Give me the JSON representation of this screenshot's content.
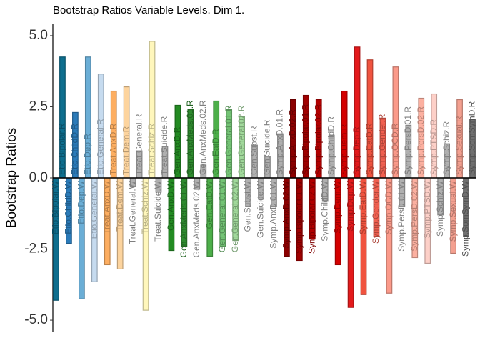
{
  "chart_data": {
    "type": "bar",
    "title": "Bootstrap Ratios Variable Levels. Dim 1.",
    "y_label": "Bootstrap Ratios",
    "categories": [
      "Etio.Bipolar.W",
      "Etio.Bipolar.R",
      "Etio.ChildD.W",
      "Etio.ChildD.R",
      "Etio.Dep.W",
      "Etio.Dep.R",
      "Etio.General.W",
      "Etio.General.R",
      "Treat.AnxD.W",
      "Treat.AnxD.R",
      "Treat.Dem.W",
      "Treat.Dem.R",
      "Treat.General.W",
      "Treat.General.R",
      "Treat.Schiz.W",
      "Treat.Schiz.R",
      "Treat.Suicide.W",
      "Treat.Suicide.R",
      "Gen.AnxD.W",
      "Gen.AnxD.R",
      "Gen.AnxMeds.01.W",
      "Gen.AnxMeds.01.R",
      "Gen.AnxMeds.02.W",
      "Gen.AnxMeds.02.R",
      "Gen.EatD.W",
      "Gen.EatD.R",
      "Gen.General.01.W",
      "Gen.General.01.R",
      "Gen.General.02.W",
      "Gen.General.02.R",
      "Gen.Subst.W",
      "Gen.Subst.R",
      "Gen.Suicide.W",
      "Gen.Suicide.R",
      "Symp.AnxD.01.W",
      "Symp.AnxD.01.R",
      "Symp.AnxD.02.W",
      "Symp.AnxD.02.R",
      "Symp.Bipolar.01.W",
      "Symp.Bipolar.01.R",
      "Symp.Bipolar.02.W",
      "Symp.Bipolar.02.R",
      "Symp.ChildD.W",
      "Symp.ChildD.R",
      "Symp.Dem.W",
      "Symp.Dem.R",
      "Symp.Dep.W",
      "Symp.Dep.R",
      "Symp.EatD.W",
      "Symp.EatD.R",
      "Symp.Gender.W",
      "Symp.Gender.R",
      "Symp.OCD.W",
      "Symp.OCD.R",
      "Symp.PersD.01.W",
      "Symp.PersD.01.R",
      "Symp.PersD.02.W",
      "Symp.PersD.02.R",
      "Symp.PTSD.W",
      "Symp.PTSD.R",
      "Symp.Schiz.W",
      "Symp.Schiz.R",
      "Symp.Sexual.W",
      "Symp.Sexual.R",
      "Symp.SomSymD.W",
      "Symp.SomSymD.R"
    ],
    "values": [
      -4.3,
      4.25,
      -2.3,
      2.3,
      -4.25,
      4.25,
      -3.65,
      3.65,
      -3.05,
      3.05,
      -3.2,
      3.2,
      -0.3,
      0.95,
      -4.65,
      4.8,
      -0.5,
      1.1,
      -2.55,
      2.55,
      -2.4,
      2.4,
      -0.4,
      0.45,
      -2.75,
      2.7,
      -2.4,
      2.4,
      -2.2,
      2.15,
      -1.0,
      1.15,
      -0.75,
      0.75,
      -1.0,
      1.55,
      -2.75,
      2.75,
      -2.9,
      2.9,
      -2.15,
      2.75,
      -0.8,
      1.5,
      -3.05,
      3.05,
      -4.55,
      4.6,
      -4.1,
      4.15,
      -2.05,
      2.1,
      -4.05,
      3.9,
      -1.0,
      1.85,
      -2.8,
      2.8,
      -3.0,
      2.95,
      -1.3,
      1.2,
      -2.65,
      2.75,
      -2.05,
      2.05
    ],
    "colors": [
      "#0e6e8e",
      "#0e6e8e",
      "#2b7bb9",
      "#2b7bb9",
      "#6baed6",
      "#6baed6",
      "#c6dbef",
      "#c6dbef",
      "#fdae61",
      "#fdae61",
      "#fdd49e",
      "#fdd49e",
      "#b0b0b0",
      "#b0b0b0",
      "#fff7bc",
      "#fff7bc",
      "#b0b0b0",
      "#b0b0b0",
      "#238b22",
      "#238b22",
      "#2e8b2e",
      "#2e8b2e",
      "#b0b0b0",
      "#b0b0b0",
      "#4daf4a",
      "#4daf4a",
      "#74c476",
      "#74c476",
      "#a1d99b",
      "#a1d99b",
      "#b0b0b0",
      "#b0b0b0",
      "#b0b0b0",
      "#b0b0b0",
      "#b0b0b0",
      "#b0b0b0",
      "#8b0000",
      "#8b0000",
      "#a00000",
      "#a00000",
      "#b20000",
      "#b20000",
      "#b0b0b0",
      "#b0b0b0",
      "#d40000",
      "#d40000",
      "#e31a1c",
      "#e31a1c",
      "#f0533f",
      "#f0533f",
      "#f06050",
      "#f06050",
      "#fb9a8a",
      "#fb9a8a",
      "#b0b0b0",
      "#b0b0b0",
      "#fcb0a0",
      "#fcb0a0",
      "#fdd0c8",
      "#fdd0c8",
      "#b0b0b0",
      "#b0b0b0",
      "#f4a090",
      "#f4a090",
      "#707070",
      "#707070"
    ],
    "ylim": [
      -5.4,
      5.4
    ],
    "yticks": [
      {
        "value": -5,
        "label": "-5.0"
      },
      {
        "value": -2.5,
        "label": "-2.5"
      },
      {
        "value": 0,
        "label": "0.0"
      },
      {
        "value": 2.5,
        "label": "2.5"
      },
      {
        "value": 5,
        "label": "5.0"
      }
    ]
  }
}
